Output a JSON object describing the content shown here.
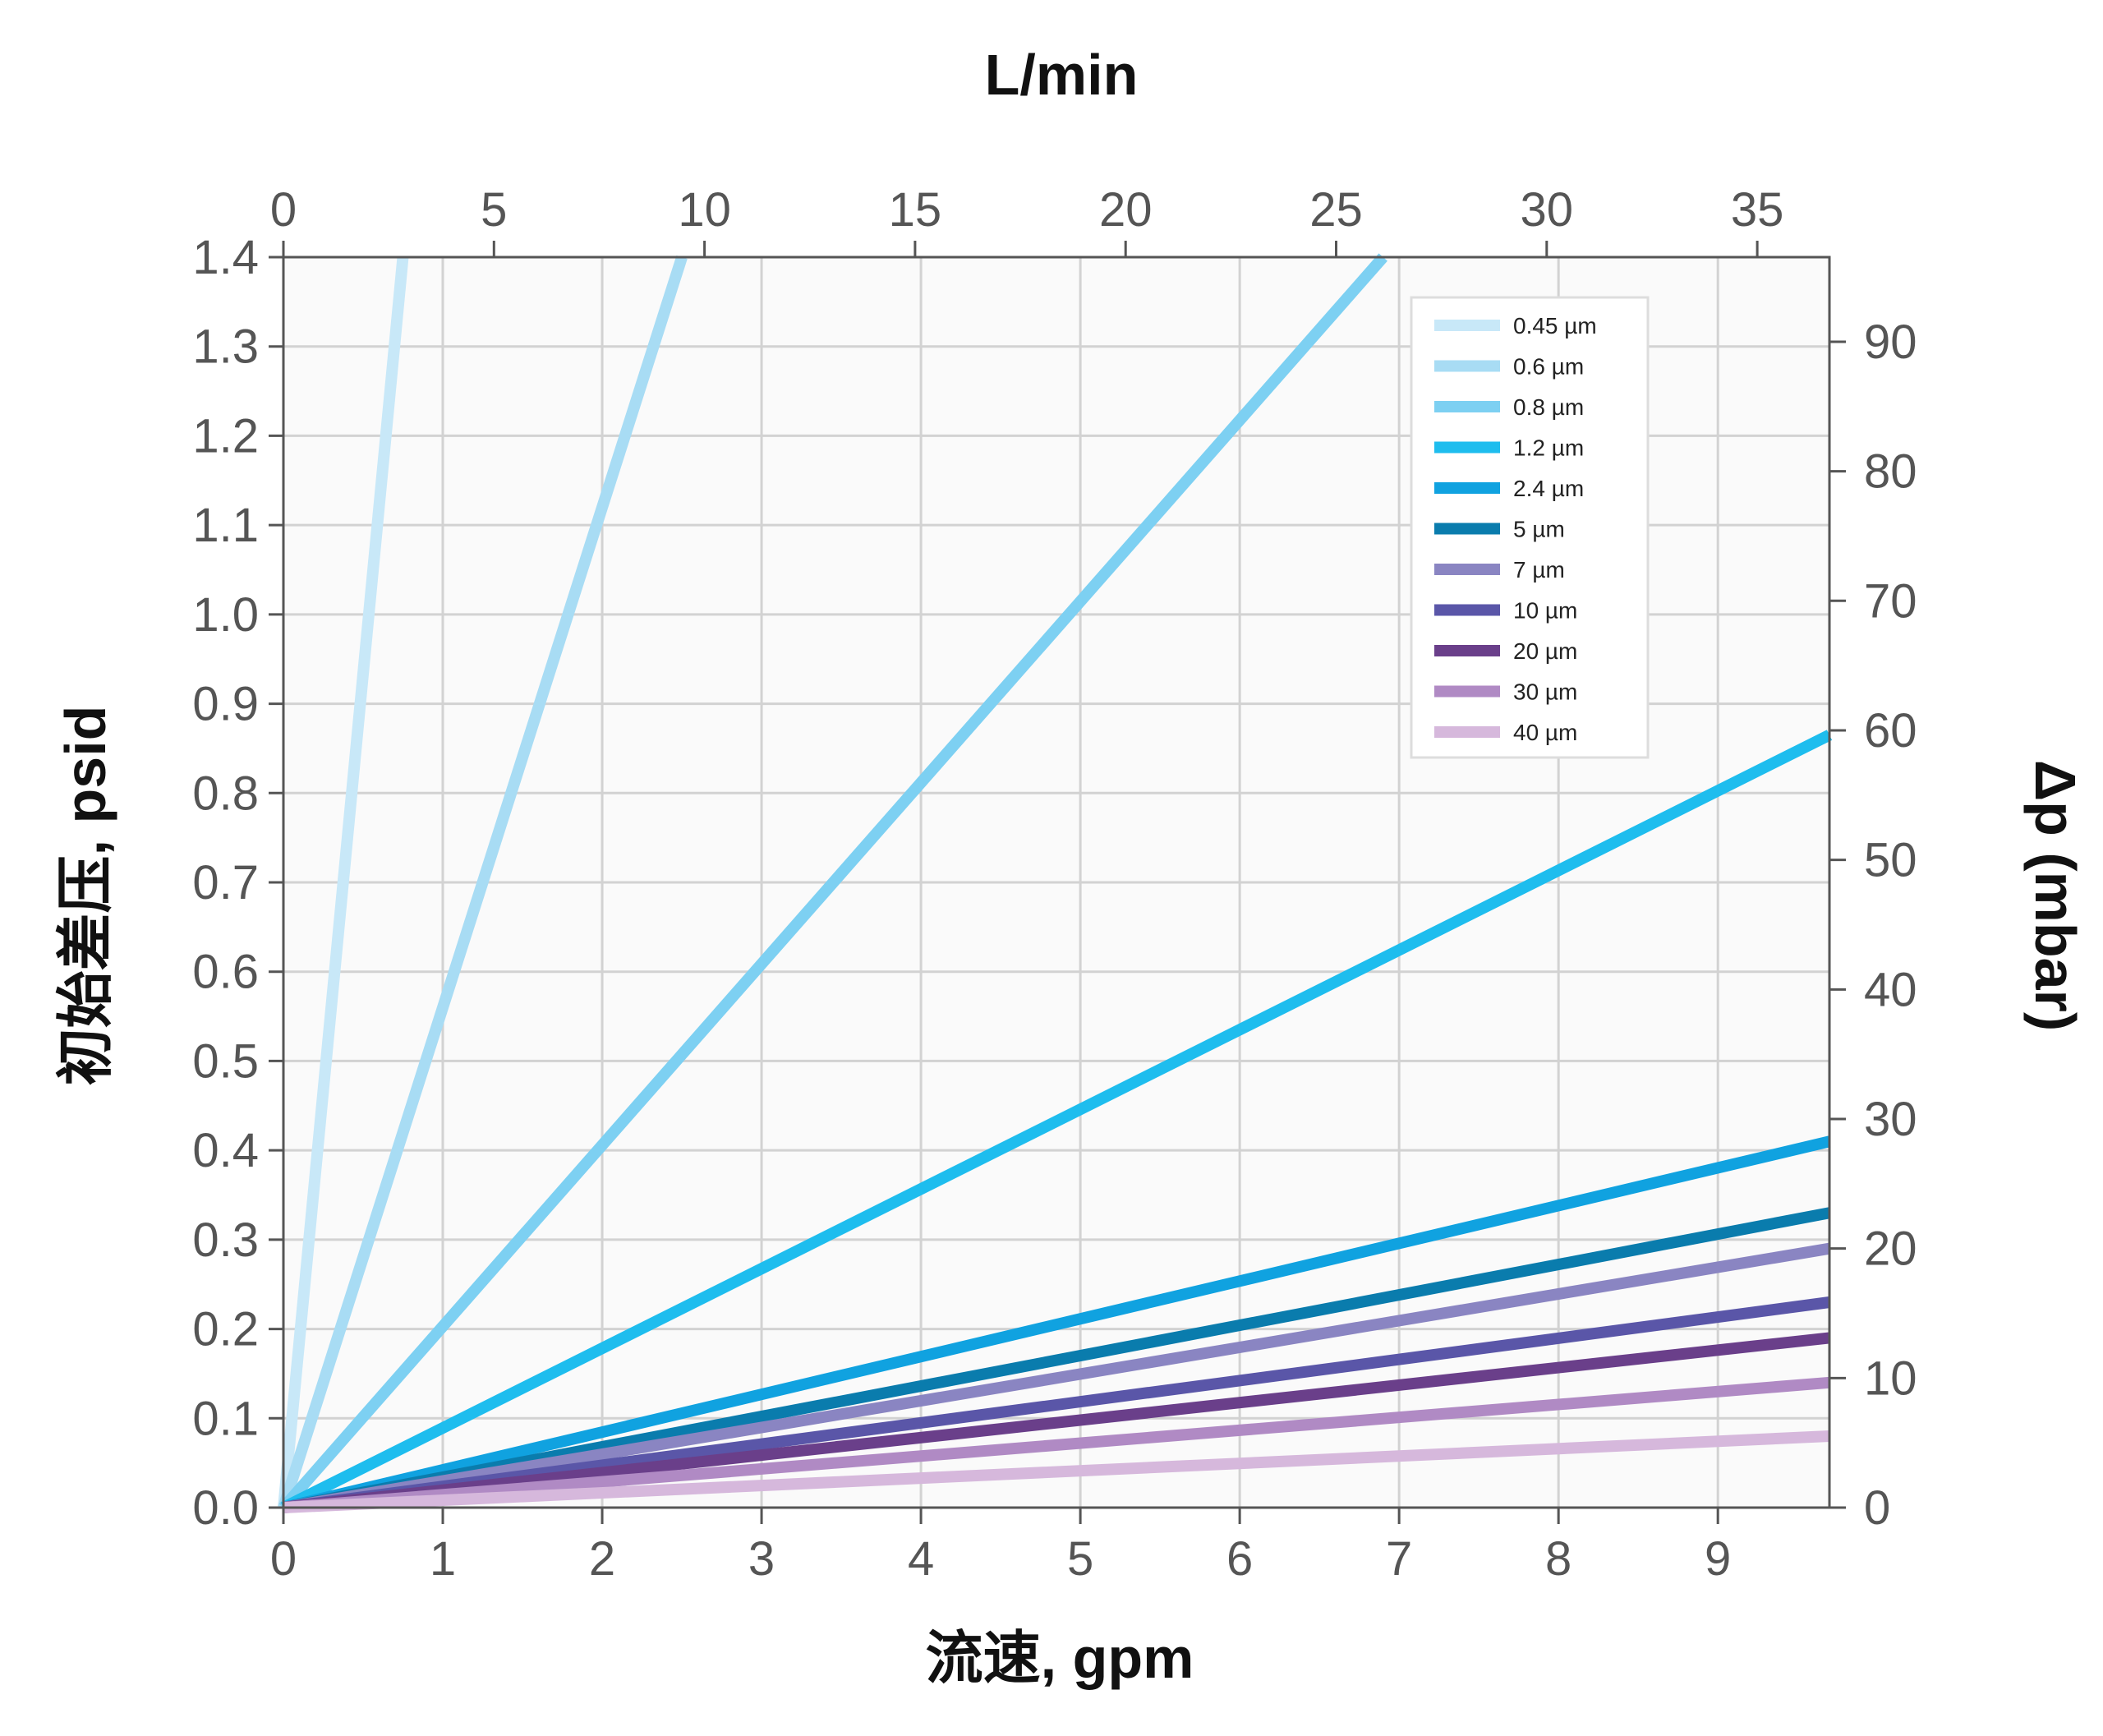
{
  "chart_data": {
    "type": "line",
    "title": "",
    "xlabel": "流速, gpm",
    "ylabel": "初始差压, psid",
    "top_xlabel": "L/min",
    "right_ylabel": "Δp (mbar)",
    "xlim": [
      0,
      9.7
    ],
    "ylim": [
      0,
      1.4
    ],
    "x_ticks": [
      "0",
      "1",
      "2",
      "3",
      "4",
      "5",
      "6",
      "7",
      "8",
      "9"
    ],
    "y_ticks": [
      "0.0",
      "0.1",
      "0.2",
      "0.3",
      "0.4",
      "0.5",
      "0.6",
      "0.7",
      "0.8",
      "0.9",
      "1.0",
      "1.1",
      "1.2",
      "1.3",
      "1.4"
    ],
    "top_x_ticks": [
      "0",
      "5",
      "10",
      "15",
      "20",
      "25",
      "30",
      "35"
    ],
    "right_y_ticks": [
      "0",
      "10",
      "20",
      "30",
      "40",
      "50",
      "60",
      "70",
      "80",
      "90"
    ],
    "top_x_scale": "L/min = gpm × 3.785",
    "right_y_scale": "mbar = psid × 68.95",
    "grid": true,
    "legend_position": "top-right",
    "series": [
      {
        "name": "0.45 µm",
        "color": "#c8e8f8",
        "x": [
          0,
          0.75
        ],
        "y": [
          0,
          1.4
        ]
      },
      {
        "name": "0.6 µm",
        "color": "#a8dcf4",
        "x": [
          0,
          2.5
        ],
        "y": [
          0,
          1.4
        ]
      },
      {
        "name": "0.8 µm",
        "color": "#7dd0f2",
        "x": [
          0,
          6.9
        ],
        "y": [
          0,
          1.4
        ]
      },
      {
        "name": "1.2 µm",
        "color": "#1ebdee",
        "x": [
          0,
          9.7
        ],
        "y": [
          0,
          0.865
        ]
      },
      {
        "name": "2.4 µm",
        "color": "#10a2e0",
        "x": [
          0,
          9.7
        ],
        "y": [
          0,
          0.41
        ]
      },
      {
        "name": "5 µm",
        "color": "#0a7cad",
        "x": [
          0,
          9.7
        ],
        "y": [
          0,
          0.33
        ]
      },
      {
        "name": "7 µm",
        "color": "#8a85c2",
        "x": [
          0,
          9.7
        ],
        "y": [
          0,
          0.29
        ]
      },
      {
        "name": "10 µm",
        "color": "#5a56a8",
        "x": [
          0,
          9.7
        ],
        "y": [
          0,
          0.23
        ]
      },
      {
        "name": "20 µm",
        "color": "#6a3f8a",
        "x": [
          0,
          9.7
        ],
        "y": [
          0,
          0.19
        ]
      },
      {
        "name": "30 µm",
        "color": "#b08ac4",
        "x": [
          0,
          9.7
        ],
        "y": [
          0,
          0.14
        ]
      },
      {
        "name": "40 µm",
        "color": "#d6b8dc",
        "x": [
          0,
          9.7
        ],
        "y": [
          0,
          0.08
        ]
      }
    ]
  }
}
